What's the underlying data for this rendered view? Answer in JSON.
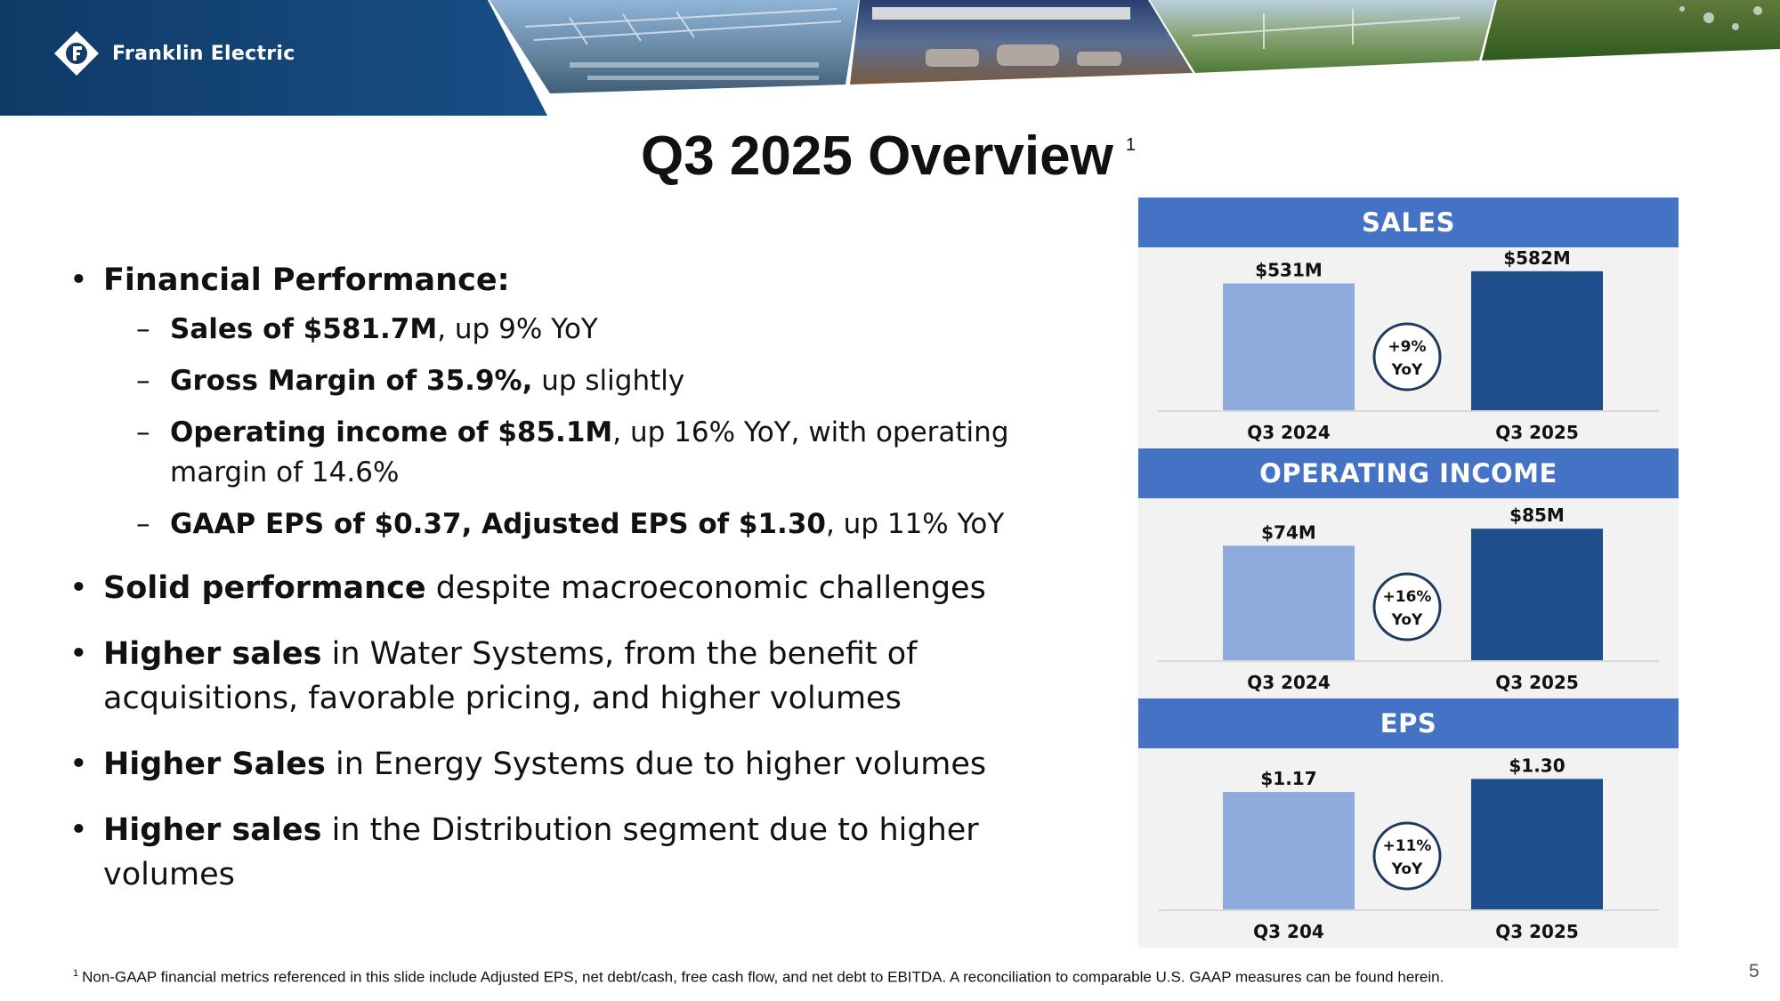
{
  "brand": {
    "name": "Franklin Electric"
  },
  "title": {
    "text": "Q3 2025 Overview",
    "sup": "1"
  },
  "bullets": {
    "b1": {
      "bold": "Financial Performance:"
    },
    "subs": [
      {
        "bold": "Sales of $581.7M",
        "rest": ", up 9% YoY"
      },
      {
        "bold": "Gross Margin of 35.9%,",
        "rest": " up slightly"
      },
      {
        "bold": "Operating income of $85.1M",
        "rest": ", up 16% YoY, with operating margin of 14.6%"
      },
      {
        "bold": "GAAP EPS of $0.37, Adjusted EPS of $1.30",
        "rest": ", up 11% YoY"
      }
    ],
    "b2": {
      "bold": "Solid performance",
      "rest": " despite macroeconomic challenges"
    },
    "b3": {
      "bold": "Higher sales",
      "rest": " in Water Systems, from the benefit of acquisitions, favorable pricing, and higher volumes"
    },
    "b4": {
      "bold": "Higher Sales",
      "rest": " in Energy Systems due to higher volumes"
    },
    "b5": {
      "bold": "Higher sales",
      "rest": " in the Distribution segment due to higher volumes"
    }
  },
  "chart_data": [
    {
      "type": "bar",
      "title": "SALES",
      "categories": [
        "Q3 2024",
        "Q3 2025"
      ],
      "values": [
        531,
        582
      ],
      "labels": [
        "$531M",
        "$582M"
      ],
      "badge": [
        "+9%",
        "YoY"
      ],
      "ylim": [
        0,
        600
      ]
    },
    {
      "type": "bar",
      "title": "OPERATING INCOME",
      "categories": [
        "Q3 2024",
        "Q3 2025"
      ],
      "values": [
        74,
        85
      ],
      "labels": [
        "$74M",
        "$85M"
      ],
      "badge": [
        "+16%",
        "YoY"
      ],
      "ylim": [
        0,
        92
      ]
    },
    {
      "type": "bar",
      "title": "EPS",
      "categories": [
        "Q3 204",
        "Q3 2025"
      ],
      "values": [
        1.17,
        1.3
      ],
      "labels": [
        "$1.17",
        "$1.30"
      ],
      "badge": [
        "+11%",
        "YoY"
      ],
      "ylim": [
        0,
        1.41
      ]
    }
  ],
  "colors": {
    "bar_prior": "#8faadc",
    "bar_current": "#1f4e8c",
    "header_blue": "#4472c4",
    "brand_navy": "#123d6b"
  },
  "footnote": {
    "sup": "1",
    "text": "Non-GAAP financial metrics referenced in this slide include Adjusted EPS, net debt/cash, free cash flow, and net debt to EBITDA. A reconciliation to comparable U.S. GAAP measures can be found herein."
  },
  "page_number": "5"
}
